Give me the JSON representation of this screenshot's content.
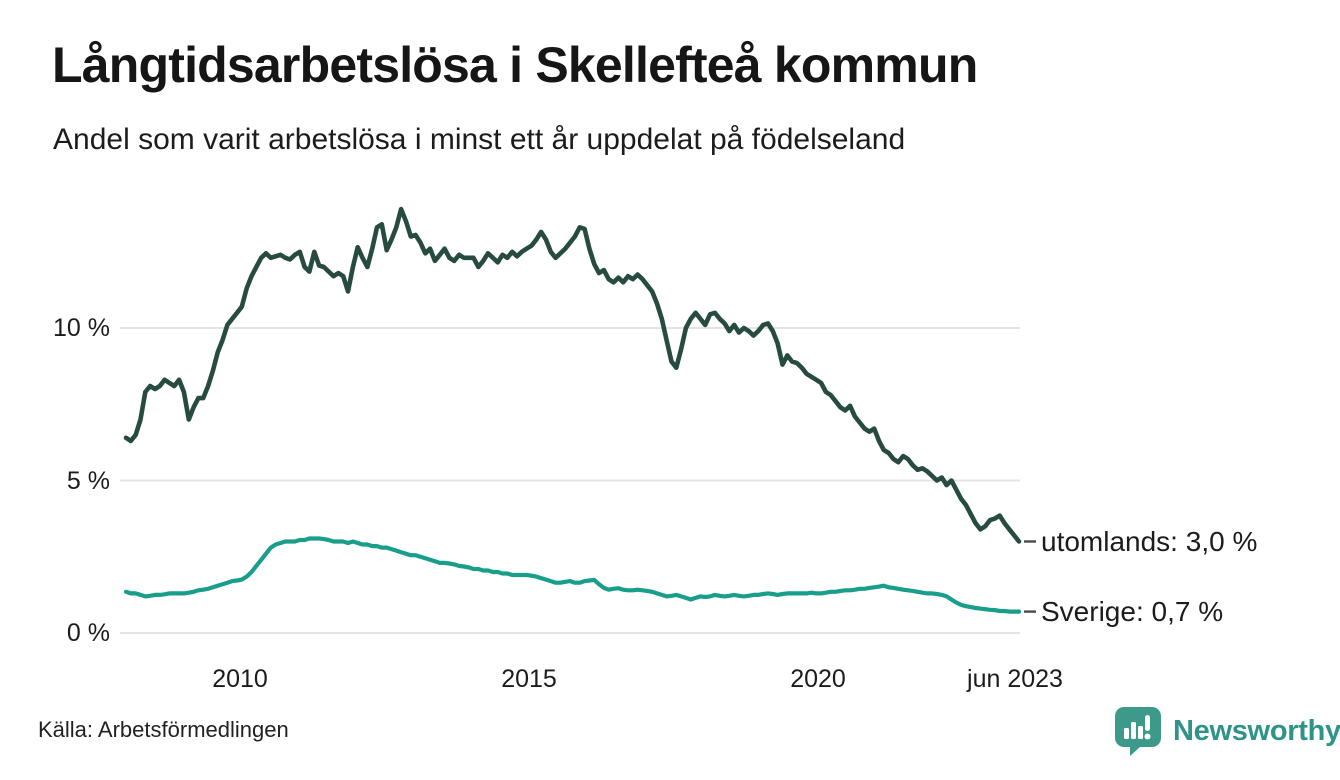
{
  "chart_data": {
    "type": "line",
    "title": "Långtidsarbetslösa i Skellefteå kommun",
    "subtitle": "Andel som varit arbetslösa i minst ett år uppdelat på födelseland",
    "x_unit": "month",
    "x_start": "2008-01",
    "x_end": "2023-06",
    "grid": true,
    "legend_position": "end-of-line",
    "ylim": [
      0,
      14.5
    ],
    "y_ticks": [
      "0 %",
      "5 %",
      "10 %"
    ],
    "y_tick_values": [
      0,
      5,
      10
    ],
    "x_ticks": [
      {
        "label": "2010",
        "year": 2010
      },
      {
        "label": "2015",
        "year": 2015
      },
      {
        "label": "2020",
        "year": 2020
      },
      {
        "label": "jun 2023",
        "year": 2023.42
      }
    ],
    "series": [
      {
        "name": "utomlands",
        "end_label": "utomlands: 3,0 %",
        "last_value_label": "3,0 %",
        "color": "#284b41",
        "values": [
          6.4,
          6.3,
          6.5,
          7.0,
          7.9,
          8.1,
          8.0,
          8.1,
          8.3,
          8.2,
          8.1,
          8.3,
          7.9,
          7.0,
          7.4,
          7.7,
          7.7,
          8.1,
          8.6,
          9.2,
          9.6,
          10.1,
          10.3,
          10.5,
          10.7,
          11.3,
          11.7,
          12.0,
          12.3,
          12.45,
          12.3,
          12.35,
          12.4,
          12.3,
          12.25,
          12.4,
          12.5,
          12.0,
          11.85,
          12.5,
          12.05,
          12.0,
          11.85,
          11.7,
          11.8,
          11.7,
          11.2,
          12.0,
          12.65,
          12.3,
          12.0,
          12.6,
          13.3,
          13.4,
          12.55,
          12.9,
          13.3,
          13.9,
          13.5,
          13.0,
          13.05,
          12.8,
          12.45,
          12.6,
          12.2,
          12.4,
          12.6,
          12.3,
          12.2,
          12.4,
          12.3,
          12.3,
          12.3,
          12.0,
          12.2,
          12.45,
          12.3,
          12.15,
          12.4,
          12.3,
          12.5,
          12.35,
          12.5,
          12.6,
          12.7,
          12.9,
          13.15,
          12.9,
          12.5,
          12.3,
          12.45,
          12.6,
          12.8,
          13.0,
          13.3,
          13.25,
          12.6,
          12.1,
          11.8,
          11.9,
          11.6,
          11.5,
          11.65,
          11.5,
          11.7,
          11.6,
          11.75,
          11.6,
          11.4,
          11.2,
          10.8,
          10.3,
          9.6,
          8.9,
          8.7,
          9.3,
          10.0,
          10.3,
          10.5,
          10.3,
          10.1,
          10.45,
          10.5,
          10.3,
          10.15,
          9.9,
          10.1,
          9.85,
          10.0,
          9.9,
          9.75,
          9.9,
          10.1,
          10.15,
          9.9,
          9.5,
          8.8,
          9.1,
          8.9,
          8.85,
          8.7,
          8.5,
          8.4,
          8.3,
          8.2,
          7.9,
          7.8,
          7.6,
          7.4,
          7.3,
          7.45,
          7.1,
          6.9,
          6.7,
          6.6,
          6.7,
          6.3,
          6.0,
          5.9,
          5.7,
          5.6,
          5.8,
          5.7,
          5.5,
          5.35,
          5.4,
          5.3,
          5.15,
          5.0,
          5.1,
          4.85,
          5.0,
          4.7,
          4.4,
          4.2,
          3.9,
          3.6,
          3.4,
          3.5,
          3.7,
          3.75,
          3.85,
          3.6,
          3.4,
          3.2,
          3.0
        ]
      },
      {
        "name": "Sverige",
        "end_label": "Sverige: 0,7 %",
        "last_value_label": "0,7 %",
        "color": "#1a9e8c",
        "values": [
          1.35,
          1.3,
          1.3,
          1.25,
          1.2,
          1.22,
          1.25,
          1.25,
          1.27,
          1.3,
          1.3,
          1.3,
          1.3,
          1.32,
          1.35,
          1.4,
          1.42,
          1.45,
          1.5,
          1.55,
          1.6,
          1.65,
          1.7,
          1.72,
          1.75,
          1.85,
          2.0,
          2.2,
          2.4,
          2.6,
          2.8,
          2.9,
          2.95,
          3.0,
          3.0,
          3.0,
          3.05,
          3.05,
          3.1,
          3.1,
          3.1,
          3.08,
          3.05,
          3.0,
          3.0,
          3.0,
          2.95,
          3.0,
          2.95,
          2.9,
          2.9,
          2.85,
          2.85,
          2.8,
          2.8,
          2.75,
          2.7,
          2.65,
          2.6,
          2.55,
          2.55,
          2.5,
          2.45,
          2.4,
          2.35,
          2.3,
          2.3,
          2.28,
          2.25,
          2.2,
          2.18,
          2.15,
          2.1,
          2.1,
          2.05,
          2.05,
          2.0,
          2.0,
          1.95,
          1.95,
          1.9,
          1.9,
          1.9,
          1.9,
          1.88,
          1.85,
          1.8,
          1.75,
          1.7,
          1.65,
          1.65,
          1.68,
          1.7,
          1.65,
          1.65,
          1.7,
          1.72,
          1.74,
          1.6,
          1.48,
          1.42,
          1.45,
          1.47,
          1.42,
          1.4,
          1.4,
          1.42,
          1.4,
          1.38,
          1.35,
          1.3,
          1.25,
          1.2,
          1.22,
          1.25,
          1.2,
          1.15,
          1.1,
          1.15,
          1.2,
          1.18,
          1.2,
          1.25,
          1.22,
          1.2,
          1.22,
          1.25,
          1.22,
          1.2,
          1.22,
          1.25,
          1.25,
          1.28,
          1.3,
          1.28,
          1.25,
          1.28,
          1.3,
          1.3,
          1.3,
          1.3,
          1.3,
          1.32,
          1.3,
          1.3,
          1.32,
          1.35,
          1.35,
          1.38,
          1.4,
          1.4,
          1.42,
          1.45,
          1.45,
          1.48,
          1.5,
          1.52,
          1.55,
          1.5,
          1.48,
          1.45,
          1.42,
          1.4,
          1.38,
          1.35,
          1.32,
          1.3,
          1.3,
          1.28,
          1.25,
          1.2,
          1.1,
          1.0,
          0.92,
          0.88,
          0.85,
          0.82,
          0.8,
          0.78,
          0.76,
          0.75,
          0.72,
          0.72,
          0.7,
          0.7,
          0.7
        ]
      }
    ]
  },
  "footer": {
    "source": "Källa: Arbetsförmedlingen",
    "brand": "Newsworthy"
  },
  "colors": {
    "line_utomlands": "#284b41",
    "line_sverige": "#1a9e8c",
    "gridline": "#e4e4e4",
    "legend_dash": "#4a4a4a",
    "brand_teal": "#2f9488",
    "logo_bubble": "#3d9a8a"
  }
}
